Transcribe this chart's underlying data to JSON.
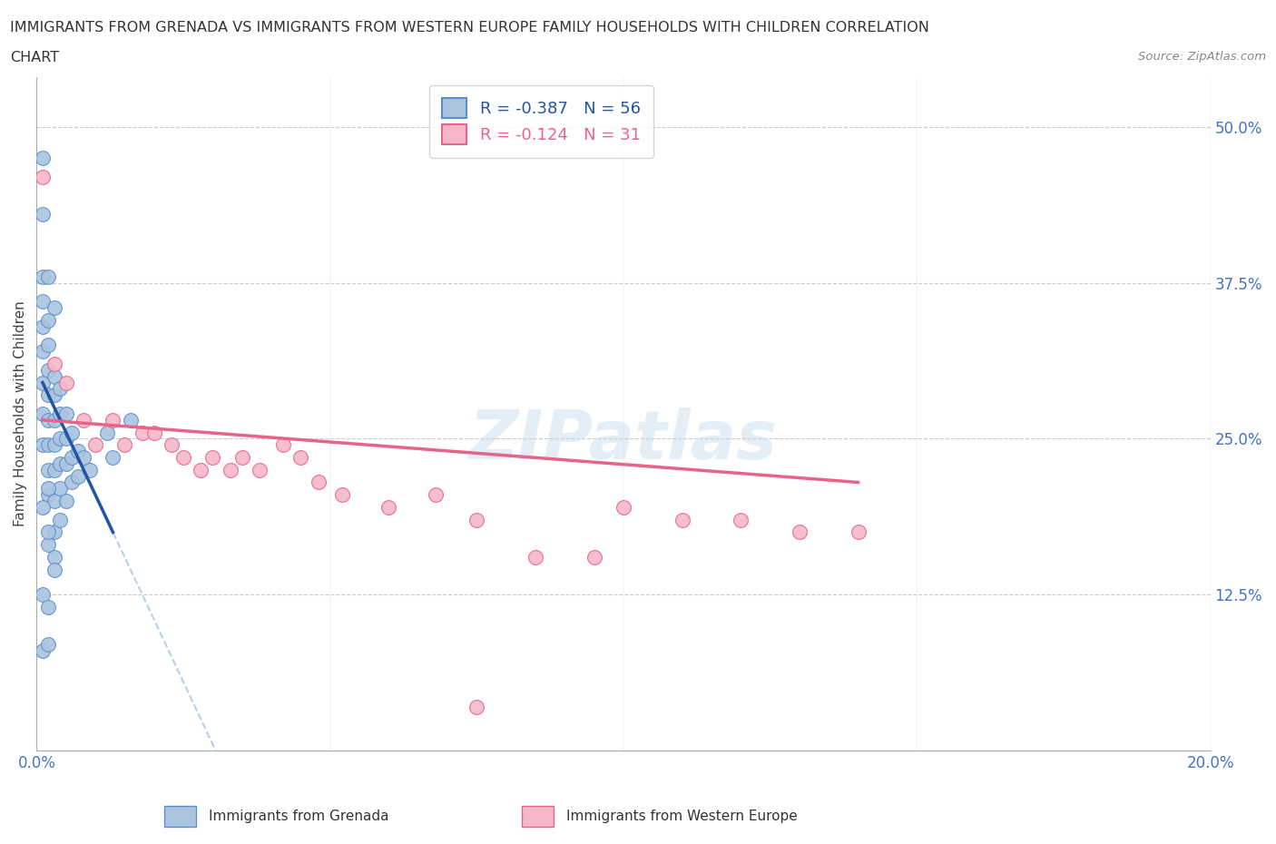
{
  "title_line1": "IMMIGRANTS FROM GRENADA VS IMMIGRANTS FROM WESTERN EUROPE FAMILY HOUSEHOLDS WITH CHILDREN CORRELATION",
  "title_line2": "CHART",
  "source": "Source: ZipAtlas.com",
  "ylabel": "Family Households with Children",
  "xlim": [
    0.0,
    0.2
  ],
  "ylim": [
    0.0,
    0.54
  ],
  "yticks": [
    0.0,
    0.125,
    0.25,
    0.375,
    0.5
  ],
  "ytick_labels": [
    "",
    "12.5%",
    "25.0%",
    "37.5%",
    "50.0%"
  ],
  "xticks": [
    0.0,
    0.05,
    0.1,
    0.15,
    0.2
  ],
  "xtick_labels": [
    "0.0%",
    "",
    "",
    "",
    "20.0%"
  ],
  "legend_r1": "R = -0.387   N = 56",
  "legend_r2": "R = -0.124   N = 31",
  "grenada_color": "#aac4e0",
  "grenada_edge": "#5b8fc9",
  "western_europe_color": "#f5b8c8",
  "western_europe_edge": "#e8638a",
  "trend_grenada_color": "#2255a4",
  "trend_western_color": "#e8638a",
  "trend_dashed_color": "#b8cfe8",
  "background_color": "#ffffff",
  "watermark": "ZIPatlas",
  "grenada_x": [
    0.001,
    0.001,
    0.001,
    0.001,
    0.001,
    0.001,
    0.001,
    0.001,
    0.002,
    0.002,
    0.002,
    0.002,
    0.002,
    0.002,
    0.002,
    0.002,
    0.003,
    0.003,
    0.003,
    0.003,
    0.003,
    0.003,
    0.003,
    0.003,
    0.004,
    0.004,
    0.004,
    0.004,
    0.004,
    0.004,
    0.005,
    0.005,
    0.005,
    0.005,
    0.006,
    0.006,
    0.006,
    0.007,
    0.007,
    0.008,
    0.009,
    0.012,
    0.013,
    0.016,
    0.001,
    0.002,
    0.003,
    0.001,
    0.002,
    0.002,
    0.001,
    0.002,
    0.003,
    0.002,
    0.001,
    0.002
  ],
  "grenada_y": [
    0.43,
    0.38,
    0.36,
    0.34,
    0.32,
    0.295,
    0.27,
    0.245,
    0.345,
    0.325,
    0.305,
    0.285,
    0.265,
    0.245,
    0.225,
    0.205,
    0.3,
    0.285,
    0.265,
    0.245,
    0.225,
    0.2,
    0.175,
    0.155,
    0.29,
    0.27,
    0.25,
    0.23,
    0.21,
    0.185,
    0.27,
    0.25,
    0.23,
    0.2,
    0.255,
    0.235,
    0.215,
    0.24,
    0.22,
    0.235,
    0.225,
    0.255,
    0.235,
    0.265,
    0.08,
    0.165,
    0.145,
    0.125,
    0.115,
    0.085,
    0.475,
    0.38,
    0.355,
    0.21,
    0.195,
    0.175
  ],
  "western_europe_x": [
    0.001,
    0.003,
    0.005,
    0.008,
    0.01,
    0.013,
    0.015,
    0.018,
    0.02,
    0.023,
    0.025,
    0.028,
    0.03,
    0.033,
    0.035,
    0.038,
    0.042,
    0.045,
    0.048,
    0.052,
    0.06,
    0.068,
    0.075,
    0.085,
    0.095,
    0.1,
    0.11,
    0.12,
    0.13,
    0.14,
    0.075
  ],
  "western_europe_y": [
    0.46,
    0.31,
    0.295,
    0.265,
    0.245,
    0.265,
    0.245,
    0.255,
    0.255,
    0.245,
    0.235,
    0.225,
    0.235,
    0.225,
    0.235,
    0.225,
    0.245,
    0.235,
    0.215,
    0.205,
    0.195,
    0.205,
    0.185,
    0.155,
    0.155,
    0.195,
    0.185,
    0.185,
    0.175,
    0.175,
    0.035
  ]
}
